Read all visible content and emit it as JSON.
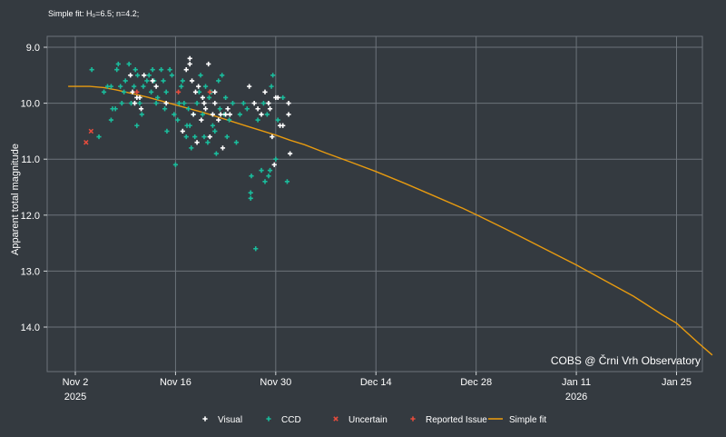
{
  "header": {
    "fit_text": "Simple fit: H₀=6.5; n=4.2;"
  },
  "watermark": "COBS @ Črni Vrh Observatory",
  "chart_data": {
    "type": "scatter",
    "title": "",
    "xlabel": "",
    "ylabel": "Apparent total magnitude",
    "y_inverted": true,
    "ylim": [
      14.8,
      8.9
    ],
    "x_range_days": [
      -3,
      84
    ],
    "x_ticks": [
      {
        "day": 0,
        "label": "Nov 2",
        "year": "2025"
      },
      {
        "day": 14,
        "label": "Nov 16",
        "year": ""
      },
      {
        "day": 28,
        "label": "Nov 30",
        "year": ""
      },
      {
        "day": 42,
        "label": "Dec 14",
        "year": ""
      },
      {
        "day": 56,
        "label": "Dec 28",
        "year": ""
      },
      {
        "day": 70,
        "label": "Jan 11",
        "year": "2026"
      },
      {
        "day": 84,
        "label": "Jan 25",
        "year": ""
      }
    ],
    "y_ticks": [
      9.0,
      10.0,
      11.0,
      12.0,
      13.0,
      14.0
    ],
    "grid": true,
    "legend_position": "bottom",
    "legend": [
      {
        "key": "visual",
        "label": "Visual",
        "color": "#ffffff",
        "marker": "plus"
      },
      {
        "key": "ccd",
        "label": "CCD",
        "color": "#1abc9c",
        "marker": "plus"
      },
      {
        "key": "uncertain",
        "label": "Uncertain",
        "color": "#e74c3c",
        "marker": "x"
      },
      {
        "key": "issue",
        "label": "Reported Issue",
        "color": "#e74c3c",
        "marker": "plus"
      },
      {
        "key": "fit",
        "label": "Simple fit",
        "color": "#e69a10",
        "marker": "line"
      }
    ],
    "series": [
      {
        "name": "Visual",
        "color": "#ffffff",
        "points": [
          [
            7.7,
            9.5
          ],
          [
            8.3,
            10.0
          ],
          [
            8.6,
            9.9
          ],
          [
            9.0,
            9.9
          ],
          [
            9.2,
            10.1
          ],
          [
            9.6,
            9.5
          ],
          [
            8.0,
            9.8
          ],
          [
            10.8,
            9.6
          ],
          [
            11.3,
            9.7
          ],
          [
            12.7,
            10.0
          ],
          [
            15.0,
            10.5
          ],
          [
            15.5,
            9.4
          ],
          [
            16.0,
            9.2
          ],
          [
            16.0,
            9.3
          ],
          [
            16.3,
            9.6
          ],
          [
            16.5,
            10.2
          ],
          [
            16.8,
            9.8
          ],
          [
            17.0,
            10.7
          ],
          [
            17.2,
            9.7
          ],
          [
            17.6,
            10.3
          ],
          [
            17.8,
            9.9
          ],
          [
            18.0,
            10.0
          ],
          [
            18.2,
            10.1
          ],
          [
            18.6,
            9.3
          ],
          [
            18.8,
            10.6
          ],
          [
            19.2,
            10.2
          ],
          [
            19.5,
            9.8
          ],
          [
            19.5,
            10.0
          ],
          [
            20.0,
            10.3
          ],
          [
            20.3,
            10.2
          ],
          [
            20.6,
            10.8
          ],
          [
            21.0,
            10.2
          ],
          [
            21.3,
            10.1
          ],
          [
            21.6,
            10.2
          ],
          [
            24.3,
            9.7
          ],
          [
            25.0,
            10.0
          ],
          [
            25.5,
            10.1
          ],
          [
            26.0,
            10.2
          ],
          [
            26.5,
            9.8
          ],
          [
            27.0,
            10.0
          ],
          [
            27.2,
            10.1
          ],
          [
            27.5,
            10.6
          ],
          [
            27.8,
            11.1
          ],
          [
            28.0,
            9.9
          ],
          [
            28.3,
            9.9
          ],
          [
            28.6,
            10.4
          ],
          [
            29.0,
            10.4
          ],
          [
            29.8,
            10.0
          ],
          [
            29.8,
            10.2
          ],
          [
            30.0,
            10.9
          ]
        ]
      },
      {
        "name": "CCD",
        "color": "#1abc9c",
        "points": [
          [
            2.3,
            9.4
          ],
          [
            3.3,
            10.6
          ],
          [
            4.0,
            9.8
          ],
          [
            4.5,
            9.7
          ],
          [
            5.0,
            9.7
          ],
          [
            5.0,
            10.3
          ],
          [
            5.2,
            10.1
          ],
          [
            5.6,
            10.1
          ],
          [
            5.8,
            9.4
          ],
          [
            6.0,
            9.3
          ],
          [
            6.3,
            9.7
          ],
          [
            6.5,
            10.0
          ],
          [
            6.8,
            9.8
          ],
          [
            7.0,
            9.6
          ],
          [
            7.5,
            9.3
          ],
          [
            7.8,
            10.0
          ],
          [
            8.2,
            9.7
          ],
          [
            8.4,
            9.4
          ],
          [
            8.6,
            10.4
          ],
          [
            8.7,
            9.5
          ],
          [
            9.0,
            10.0
          ],
          [
            9.3,
            10.2
          ],
          [
            9.5,
            9.7
          ],
          [
            10.0,
            9.6
          ],
          [
            10.3,
            9.5
          ],
          [
            10.6,
            9.8
          ],
          [
            10.8,
            9.4
          ],
          [
            11.0,
            9.6
          ],
          [
            11.3,
            10.0
          ],
          [
            11.5,
            9.9
          ],
          [
            12.0,
            9.4
          ],
          [
            12.3,
            9.6
          ],
          [
            12.5,
            10.1
          ],
          [
            12.7,
            9.8
          ],
          [
            12.8,
            10.5
          ],
          [
            13.2,
            9.4
          ],
          [
            13.5,
            9.5
          ],
          [
            13.8,
            10.2
          ],
          [
            14.0,
            11.1
          ],
          [
            14.3,
            10.3
          ],
          [
            14.5,
            10.0
          ],
          [
            14.8,
            9.7
          ],
          [
            15.0,
            9.6
          ],
          [
            15.2,
            10.0
          ],
          [
            15.5,
            10.6
          ],
          [
            15.6,
            10.4
          ],
          [
            15.8,
            10.1
          ],
          [
            16.0,
            10.4
          ],
          [
            16.2,
            10.8
          ],
          [
            16.5,
            10.2
          ],
          [
            16.7,
            10.6
          ],
          [
            17.0,
            10.0
          ],
          [
            17.3,
            9.8
          ],
          [
            17.5,
            9.5
          ],
          [
            17.8,
            10.2
          ],
          [
            18.0,
            10.6
          ],
          [
            18.2,
            9.7
          ],
          [
            18.5,
            10.7
          ],
          [
            18.7,
            9.9
          ],
          [
            19.0,
            9.8
          ],
          [
            19.2,
            10.4
          ],
          [
            19.5,
            10.5
          ],
          [
            19.7,
            10.9
          ],
          [
            20.0,
            9.6
          ],
          [
            20.2,
            10.1
          ],
          [
            20.5,
            9.5
          ],
          [
            20.8,
            10.2
          ],
          [
            21.0,
            9.9
          ],
          [
            21.2,
            10.6
          ],
          [
            21.5,
            10.3
          ],
          [
            22.0,
            10.0
          ],
          [
            22.5,
            10.7
          ],
          [
            23.0,
            10.2
          ],
          [
            23.5,
            10.0
          ],
          [
            24.0,
            10.1
          ],
          [
            24.5,
            11.7
          ],
          [
            24.5,
            11.6
          ],
          [
            24.6,
            11.3
          ],
          [
            25.2,
            12.6
          ],
          [
            25.5,
            10.3
          ],
          [
            26.0,
            11.2
          ],
          [
            26.3,
            10.0
          ],
          [
            26.5,
            11.4
          ],
          [
            26.8,
            10.2
          ],
          [
            27.0,
            11.3
          ],
          [
            27.2,
            11.2
          ],
          [
            27.4,
            9.7
          ],
          [
            27.6,
            9.5
          ],
          [
            28.0,
            11.0
          ],
          [
            28.3,
            10.3
          ],
          [
            29.0,
            9.9
          ],
          [
            29.6,
            11.4
          ]
        ]
      },
      {
        "name": "Uncertain",
        "color": "#e74c3c",
        "points": [
          [
            1.5,
            10.7
          ],
          [
            2.2,
            10.5
          ]
        ]
      },
      {
        "name": "Reported Issue",
        "color": "#e74c3c",
        "points": [
          [
            8.6,
            9.8
          ],
          [
            14.4,
            9.8
          ],
          [
            18.8,
            9.8
          ]
        ]
      },
      {
        "name": "Simple fit",
        "color": "#e69a10",
        "curve": [
          [
            -1,
            9.7
          ],
          [
            2,
            9.7
          ],
          [
            4,
            9.72
          ],
          [
            6,
            9.77
          ],
          [
            8,
            9.83
          ],
          [
            10,
            9.89
          ],
          [
            12,
            9.96
          ],
          [
            14,
            10.03
          ],
          [
            16,
            10.1
          ],
          [
            18,
            10.17
          ],
          [
            20,
            10.25
          ],
          [
            22,
            10.33
          ],
          [
            24,
            10.41
          ],
          [
            26,
            10.49
          ],
          [
            28,
            10.57
          ],
          [
            30,
            10.66
          ],
          [
            32,
            10.74
          ],
          [
            35,
            10.89
          ],
          [
            38,
            11.03
          ],
          [
            42,
            11.22
          ],
          [
            46,
            11.43
          ],
          [
            50,
            11.65
          ],
          [
            54,
            11.87
          ],
          [
            56,
            11.99
          ],
          [
            60,
            12.24
          ],
          [
            64,
            12.5
          ],
          [
            68,
            12.76
          ],
          [
            70,
            12.89
          ],
          [
            74,
            13.17
          ],
          [
            78,
            13.45
          ],
          [
            82,
            13.78
          ],
          [
            84,
            13.93
          ],
          [
            87,
            14.28
          ],
          [
            89,
            14.5
          ]
        ]
      }
    ]
  }
}
